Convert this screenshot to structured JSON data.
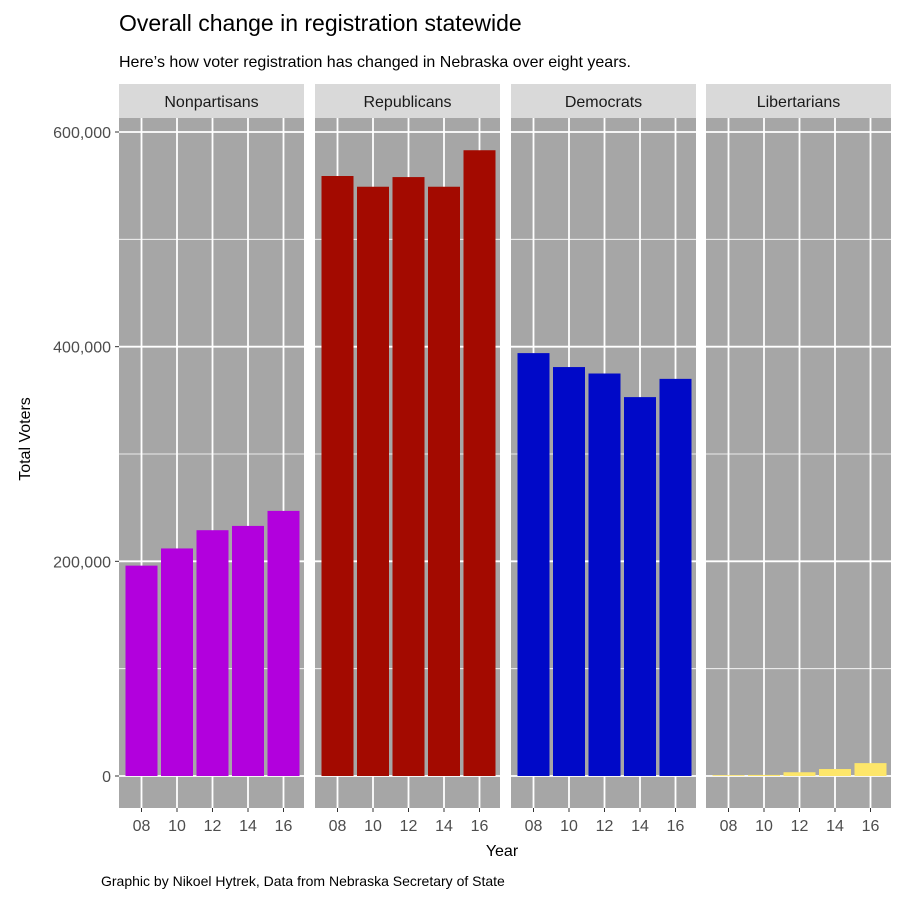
{
  "chart_data": {
    "type": "bar",
    "title": "Overall change in registration statewide",
    "subtitle": "Here’s how voter registration has changed in Nebraska over eight years.",
    "caption": "Graphic by Nikoel Hytrek, Data from Nebraska Secretary of State",
    "xlabel": "Year",
    "ylabel": "Total Voters",
    "categories": [
      "08",
      "10",
      "12",
      "14",
      "16"
    ],
    "ylim": [
      0,
      630000
    ],
    "yticks": [
      0,
      200000,
      400000,
      600000
    ],
    "ytick_labels": [
      "0",
      "200,000",
      "400,000",
      "600,000"
    ],
    "grid": true,
    "legend": "none",
    "panel_background": "#a6a6a6",
    "strip_background": "#d9d9d9",
    "series": [
      {
        "name": "Nonpartisans",
        "color": "#b200dd",
        "values": [
          196000,
          212000,
          229000,
          233000,
          247000
        ]
      },
      {
        "name": "Republicans",
        "color": "#a30a00",
        "values": [
          559000,
          549000,
          558000,
          549000,
          583000
        ]
      },
      {
        "name": "Democrats",
        "color": "#0009c8",
        "values": [
          394000,
          381000,
          375000,
          353000,
          370000
        ]
      },
      {
        "name": "Libertarians",
        "color": "#fde66a",
        "values": [
          300,
          1000,
          3500,
          6500,
          12000
        ]
      }
    ]
  }
}
